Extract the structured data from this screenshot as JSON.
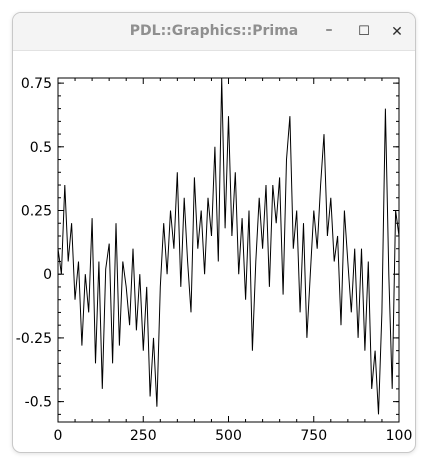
{
  "window": {
    "title": "PDL::Graphics::Prima",
    "minimize_icon": "minimize-icon",
    "maximize_icon": "maximize-icon",
    "close_icon": "close-icon",
    "minimize_glyph": "–",
    "maximize_glyph": "☐",
    "close_glyph": "✕"
  },
  "chart_data": {
    "type": "line",
    "xlim": [
      0,
      100
    ],
    "ylim": [
      -0.58,
      0.77
    ],
    "grid": false,
    "xticks": [
      0,
      25,
      50,
      75,
      100
    ],
    "xtick_labels": [
      "0",
      "250",
      "500",
      "750",
      "100"
    ],
    "yticks": [
      0.75,
      0.5,
      0.25,
      0,
      -0.25,
      -0.5
    ],
    "ytick_labels": [
      "0.75",
      "0.5",
      "0.25",
      "0",
      "-0.25",
      "-0.5"
    ],
    "line_color": "#000000",
    "series": [
      {
        "values": [
          0.1,
          0.0,
          0.35,
          0.05,
          0.2,
          -0.1,
          0.05,
          -0.28,
          0.0,
          -0.15,
          0.22,
          -0.35,
          0.05,
          -0.45,
          0.02,
          0.12,
          -0.35,
          0.2,
          -0.28,
          0.05,
          -0.05,
          -0.2,
          0.1,
          -0.22,
          0.0,
          -0.3,
          -0.05,
          -0.48,
          -0.25,
          -0.52,
          -0.05,
          0.2,
          0.0,
          0.25,
          0.1,
          0.4,
          -0.05,
          0.3,
          0.05,
          -0.15,
          0.38,
          0.1,
          0.25,
          0.0,
          0.3,
          0.15,
          0.5,
          0.05,
          0.78,
          0.18,
          0.62,
          0.15,
          0.4,
          0.0,
          0.22,
          -0.1,
          0.25,
          -0.3,
          0.05,
          0.3,
          0.1,
          0.35,
          -0.05,
          0.35,
          0.2,
          0.38,
          -0.08,
          0.45,
          0.62,
          0.1,
          0.25,
          -0.15,
          0.2,
          -0.25,
          0.0,
          0.25,
          0.1,
          0.35,
          0.55,
          0.15,
          0.3,
          0.05,
          0.15,
          -0.2,
          0.25,
          0.05,
          -0.15,
          0.1,
          -0.25,
          0.1,
          -0.3,
          0.05,
          -0.45,
          -0.3,
          -0.55,
          -0.15,
          0.65,
          0.0,
          -0.45,
          0.25,
          0.15
        ]
      }
    ]
  }
}
